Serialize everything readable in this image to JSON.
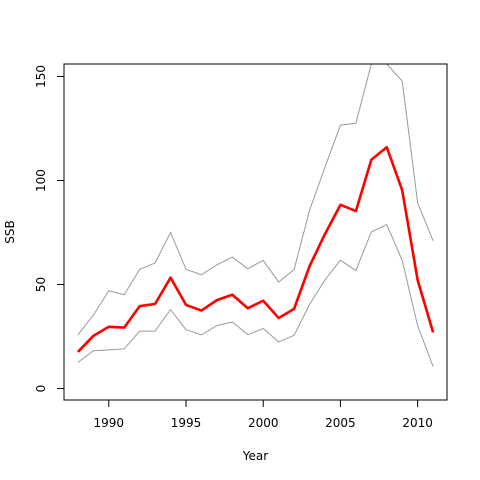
{
  "chart_data": {
    "type": "line",
    "xlabel": "Year",
    "ylabel": "SSB",
    "xlim": [
      1987.1,
      2011.9
    ],
    "ylim": [
      -5.5,
      156
    ],
    "grid": false,
    "x_ticks": [
      1990,
      1995,
      2000,
      2005,
      2010
    ],
    "y_ticks": [
      0,
      50,
      100,
      150
    ],
    "x": [
      1988,
      1989,
      1990,
      1991,
      1992,
      1993,
      1994,
      1995,
      1996,
      1997,
      1998,
      1999,
      2000,
      2001,
      2002,
      2003,
      2004,
      2005,
      2006,
      2007,
      2008,
      2009,
      2010,
      2011
    ],
    "series": [
      {
        "role": "estimate",
        "color": "#ff0000",
        "values": [
          17.6,
          25.3,
          29.7,
          29.3,
          39.6,
          40.7,
          53.3,
          40.2,
          37.5,
          42.5,
          45.1,
          38.6,
          42.2,
          33.9,
          38.3,
          58.8,
          74.3,
          88.3,
          85.3,
          110.0,
          116.0,
          95.3,
          52.1,
          27.0
        ]
      },
      {
        "role": "upper bound",
        "color": "#999999",
        "values": [
          25.8,
          35.3,
          47.0,
          45.1,
          57.3,
          60.4,
          75.1,
          57.3,
          54.7,
          59.5,
          63.2,
          57.6,
          61.6,
          51.2,
          57.2,
          85.7,
          106.4,
          126.6,
          127.5,
          156.0,
          156.0,
          147.8,
          89.2,
          71.0
        ]
      },
      {
        "role": "lower bound",
        "color": "#999999",
        "values": [
          12.6,
          18.2,
          18.6,
          19.1,
          27.6,
          27.6,
          38.0,
          28.3,
          25.8,
          30.3,
          32.0,
          25.9,
          28.9,
          22.4,
          25.6,
          40.4,
          52.3,
          61.7,
          56.7,
          75.3,
          78.8,
          61.6,
          30.2,
          10.6
        ]
      }
    ]
  }
}
